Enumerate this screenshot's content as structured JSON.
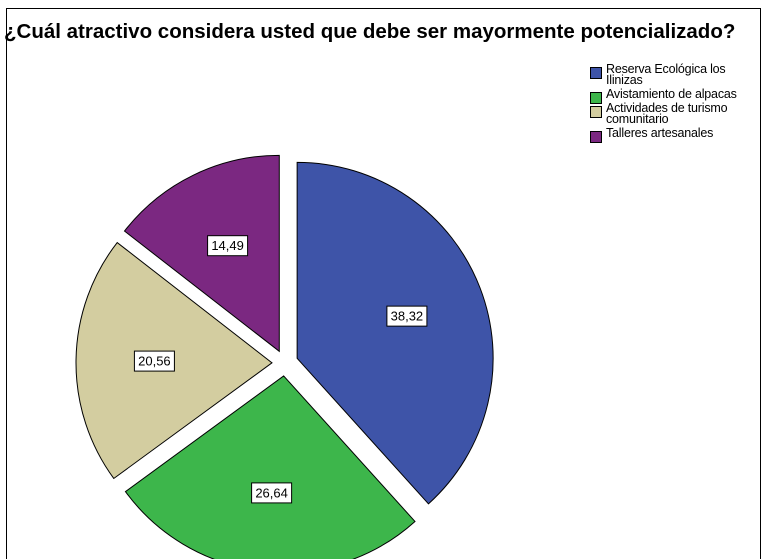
{
  "chart_data": {
    "type": "pie",
    "title": "¿Cuál atractivo considera usted que debe ser mayormente potencializado?",
    "slices": [
      {
        "label": "Reserva Ecológica los Ilinizas",
        "value": 38.32,
        "value_label": "38,32",
        "color": "#3E54A8"
      },
      {
        "label": "Avistamiento de alpacas",
        "value": 26.64,
        "value_label": "26,64",
        "color": "#3DB64B"
      },
      {
        "label": "Actividades de turismo comunitario",
        "value": 20.56,
        "value_label": "20,56",
        "color": "#D3CDA0"
      },
      {
        "label": "Talleres artesanales",
        "value": 14.49,
        "value_label": "14,49",
        "color": "#7B2881"
      }
    ],
    "start_angle_deg": 0,
    "direction": "clockwise",
    "exploded": true,
    "legend_position": "top-right"
  }
}
